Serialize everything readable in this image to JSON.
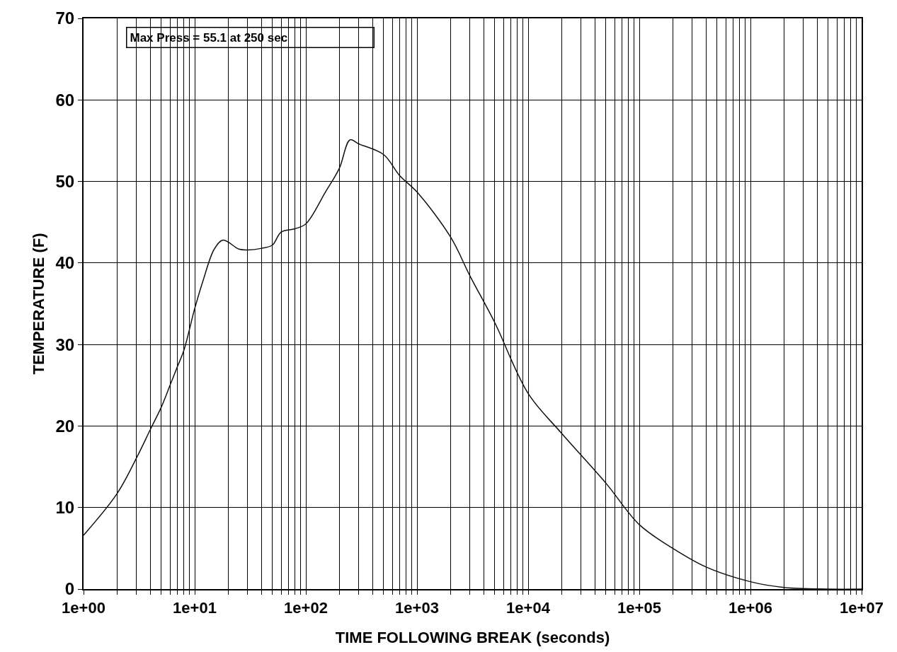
{
  "chart_data": {
    "type": "line",
    "xlabel": "TIME FOLLOWING BREAK (seconds)",
    "ylabel": "TEMPERATURE (F)",
    "annotations": [
      "Max Press = 55.1 at 250 sec"
    ],
    "log": "x",
    "grid": true,
    "marker": "none",
    "line_style": "solid",
    "xlim": [
      1,
      10000000
    ],
    "ylim": [
      0,
      70
    ],
    "xticks": [
      {
        "value": 1,
        "label": "1e+00"
      },
      {
        "value": 10,
        "label": "1e+01"
      },
      {
        "value": 100,
        "label": "1e+02"
      },
      {
        "value": 1000,
        "label": "1e+03"
      },
      {
        "value": 10000,
        "label": "1e+04"
      },
      {
        "value": 100000,
        "label": "1e+05"
      },
      {
        "value": 1000000,
        "label": "1e+06"
      },
      {
        "value": 10000000,
        "label": "1e+07"
      }
    ],
    "yticks": [
      0,
      10,
      20,
      30,
      40,
      50,
      60,
      70
    ],
    "x": [
      1,
      2,
      3,
      4,
      5,
      6,
      7,
      8,
      10,
      12,
      15,
      18,
      25,
      30,
      40,
      50,
      60,
      80,
      100,
      150,
      200,
      250,
      300,
      500,
      700,
      1000,
      2000,
      3000,
      5000,
      10000,
      20000,
      50000,
      100000,
      200000,
      400000,
      1000000,
      2000000,
      5000000,
      10000000
    ],
    "series": [
      {
        "color": "#111111",
        "values": [
          6.6,
          11.7,
          16.1,
          19.6,
          22.3,
          25,
          27.3,
          29.3,
          34.4,
          38,
          41.7,
          42.8,
          41.7,
          41.6,
          41.8,
          42.2,
          43.8,
          44.2,
          44.8,
          48.7,
          51.6,
          55.1,
          54.6,
          53.3,
          50.7,
          48.7,
          43.2,
          38.4,
          32.7,
          24,
          19.1,
          13,
          7.9,
          5,
          2.7,
          0.9,
          0.2,
          0,
          0
        ]
      }
    ]
  }
}
